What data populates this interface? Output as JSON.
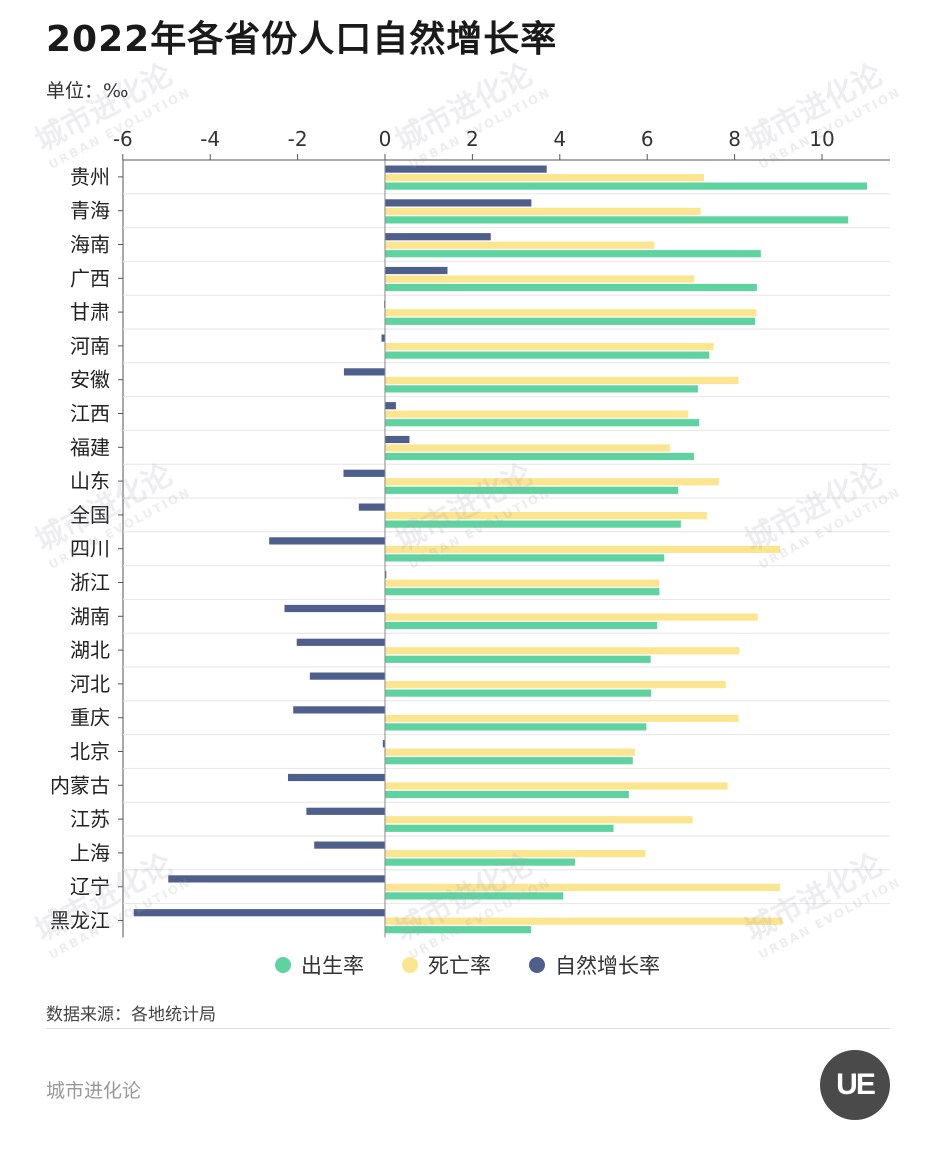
{
  "header": {
    "title": "2022年各省份人口自然增长率",
    "unit": "单位：‰"
  },
  "legend": [
    {
      "label": "出生率",
      "color": "#5ed3a0"
    },
    {
      "label": "死亡率",
      "color": "#fbe58e"
    },
    {
      "label": "自然增长率",
      "color": "#4f5f8c"
    }
  ],
  "footer": {
    "source": "数据来源：各地统计局",
    "brand": "城市进化论",
    "logo_text": "UE"
  },
  "watermark": {
    "text": "城市进化论",
    "sub": "URBAN EVOLUTION"
  },
  "chart_data": {
    "type": "bar",
    "orientation": "horizontal",
    "xlim": [
      -6,
      11.5
    ],
    "xticks": [
      -6,
      -4,
      -2,
      0,
      2,
      4,
      6,
      8,
      10
    ],
    "grid": false,
    "legend_position": "bottom",
    "categories": [
      "贵州",
      "青海",
      "海南",
      "广西",
      "甘肃",
      "河南",
      "安徽",
      "江西",
      "福建",
      "山东",
      "全国",
      "四川",
      "浙江",
      "湖南",
      "湖北",
      "河北",
      "重庆",
      "北京",
      "内蒙古",
      "江苏",
      "上海",
      "辽宁",
      "黑龙江"
    ],
    "series": [
      {
        "name": "自然增长率",
        "values": [
          3.7,
          3.35,
          2.42,
          1.43,
          -0.02,
          -0.08,
          -0.94,
          0.25,
          0.56,
          -0.95,
          -0.6,
          -2.65,
          0.03,
          -2.3,
          -2.02,
          -1.72,
          -2.1,
          -0.05,
          -2.22,
          -1.8,
          -1.62,
          -4.96,
          -5.75
        ]
      },
      {
        "name": "死亡率",
        "values": [
          7.3,
          7.22,
          6.16,
          7.08,
          8.5,
          7.52,
          8.09,
          6.94,
          6.52,
          7.64,
          7.37,
          9.04,
          6.27,
          8.53,
          8.11,
          7.8,
          8.09,
          5.72,
          7.84,
          7.04,
          5.96,
          9.04,
          9.09
        ]
      },
      {
        "name": "出生率",
        "values": [
          11.03,
          10.6,
          8.6,
          8.51,
          8.47,
          7.42,
          7.16,
          7.19,
          7.07,
          6.71,
          6.77,
          6.39,
          6.28,
          6.23,
          6.08,
          6.09,
          5.98,
          5.67,
          5.58,
          5.23,
          4.35,
          4.08,
          3.34
        ]
      }
    ]
  }
}
